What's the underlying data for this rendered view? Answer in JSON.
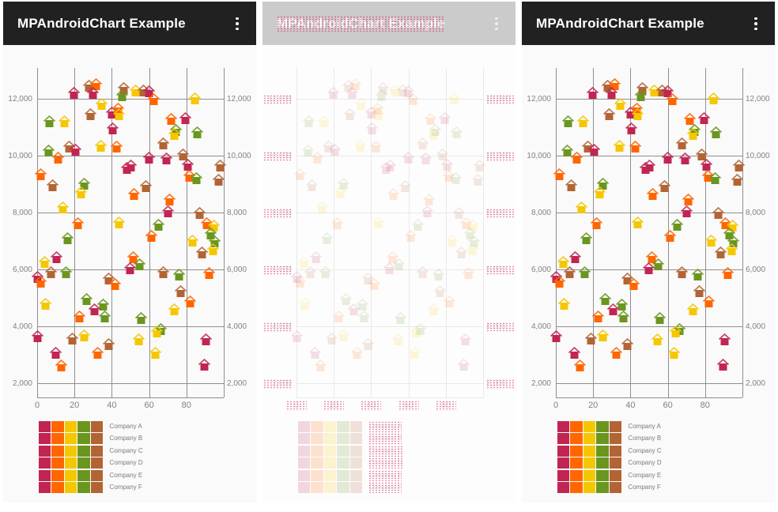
{
  "header": {
    "title": "MPAndroidChart Example",
    "menu_icon": "kebab-menu-icon"
  },
  "panels": [
    {
      "name": "expected-screenshot",
      "variant": "normal"
    },
    {
      "name": "diff-screenshot",
      "variant": "faded"
    },
    {
      "name": "actual-screenshot",
      "variant": "normal"
    }
  ],
  "colors": {
    "app_bar": "#212121",
    "app_bar_faded": "#cbcbcb",
    "title_text": "#ffffff",
    "panel_bg": "#fafafa",
    "grid": "#8f8f8f",
    "axis_text": "#828282",
    "legend_text": "#7a7a7a",
    "diff_dot": "#d30040",
    "series": [
      "#c12552",
      "#ff6600",
      "#f5c700",
      "#6a961f",
      "#b36435"
    ]
  },
  "chart_data": {
    "type": "scatter",
    "marker": "house-icon",
    "title": "",
    "xlabel": "",
    "ylabel": "",
    "xlim": [
      0,
      100
    ],
    "ylim": [
      1500,
      13000
    ],
    "grid": true,
    "x_ticks": [
      {
        "v": 0,
        "label": "0"
      },
      {
        "v": 20,
        "label": "20"
      },
      {
        "v": 40,
        "label": "40"
      },
      {
        "v": 60,
        "label": "60"
      },
      {
        "v": 80,
        "label": "80"
      }
    ],
    "y_ticks": [
      {
        "v": 12000,
        "label": "12,000"
      },
      {
        "v": 10000,
        "label": "10,000"
      },
      {
        "v": 8000,
        "label": "8,000"
      },
      {
        "v": 6000,
        "label": "6,000"
      },
      {
        "v": 4000,
        "label": "4,000"
      },
      {
        "v": 2000,
        "label": "2,000"
      }
    ],
    "legend": {
      "position": "bottom-left",
      "labels": [
        "Company A",
        "Company B",
        "Company C",
        "Company D",
        "Company E",
        "Company F"
      ],
      "swatches_per_row": 5
    },
    "series_colors": [
      "crimson",
      "orange",
      "yellow",
      "green",
      "brown"
    ],
    "points": [
      [
        19.7,
        12150,
        0
      ],
      [
        27.7,
        12400,
        4
      ],
      [
        31.5,
        12450,
        1
      ],
      [
        29.8,
        12150,
        0
      ],
      [
        46.6,
        12300,
        4
      ],
      [
        45.4,
        12050,
        3
      ],
      [
        34.5,
        11750,
        2
      ],
      [
        28.6,
        11400,
        4
      ],
      [
        39.9,
        11450,
        0
      ],
      [
        43.3,
        11575,
        1
      ],
      [
        43.7,
        11400,
        2
      ],
      [
        6.7,
        11150,
        3
      ],
      [
        14.7,
        11150,
        2
      ],
      [
        40.3,
        10900,
        0
      ],
      [
        17.2,
        10250,
        4
      ],
      [
        20.6,
        10150,
        0
      ],
      [
        34,
        10275,
        2
      ],
      [
        42.4,
        10250,
        1
      ],
      [
        6.3,
        10100,
        3
      ],
      [
        11.3,
        9850,
        1
      ],
      [
        48.3,
        9500,
        0
      ],
      [
        2.1,
        9275,
        1
      ],
      [
        8.4,
        8900,
        4
      ],
      [
        25.2,
        8950,
        3
      ],
      [
        23.5,
        8650,
        2
      ],
      [
        13.9,
        8100,
        2
      ],
      [
        21.8,
        7550,
        1
      ],
      [
        43.7,
        7575,
        2
      ],
      [
        52.9,
        12225,
        2
      ],
      [
        57.1,
        12225,
        4
      ],
      [
        60.1,
        12200,
        0
      ],
      [
        62.6,
        11925,
        1
      ],
      [
        84.5,
        11950,
        2
      ],
      [
        71.8,
        11225,
        1
      ],
      [
        79.4,
        11250,
        0
      ],
      [
        74.4,
        10825,
        3
      ],
      [
        73.5,
        10700,
        2
      ],
      [
        85.7,
        10750,
        3
      ],
      [
        67.6,
        10350,
        4
      ],
      [
        78.2,
        9975,
        4
      ],
      [
        60.1,
        9850,
        0
      ],
      [
        69.3,
        9825,
        0
      ],
      [
        80.7,
        9600,
        0
      ],
      [
        50.4,
        9575,
        0
      ],
      [
        81.5,
        9225,
        1
      ],
      [
        85.3,
        9150,
        3
      ],
      [
        97.9,
        9575,
        4
      ],
      [
        97.1,
        9075,
        4
      ],
      [
        58.4,
        8850,
        4
      ],
      [
        52.1,
        8575,
        1
      ],
      [
        71,
        8400,
        1
      ],
      [
        70.2,
        7975,
        0
      ],
      [
        87,
        7925,
        4
      ],
      [
        90.8,
        7550,
        1
      ],
      [
        65.1,
        7500,
        3
      ],
      [
        94.5,
        7475,
        2
      ],
      [
        16.4,
        7025,
        3
      ],
      [
        4.2,
        6200,
        2
      ],
      [
        10.5,
        6350,
        0
      ],
      [
        7.6,
        5825,
        4
      ],
      [
        15.5,
        5825,
        3
      ],
      [
        0,
        5675,
        0
      ],
      [
        2.1,
        5500,
        1
      ],
      [
        38.2,
        5600,
        4
      ],
      [
        41.6,
        5425,
        1
      ],
      [
        4.6,
        4725,
        2
      ],
      [
        26.5,
        4900,
        3
      ],
      [
        35.3,
        4700,
        3
      ],
      [
        30.7,
        4525,
        0
      ],
      [
        22.7,
        4275,
        1
      ],
      [
        36.1,
        4275,
        3
      ],
      [
        0.4,
        3575,
        0
      ],
      [
        18.9,
        3500,
        4
      ],
      [
        25.2,
        3600,
        2
      ],
      [
        38.2,
        3300,
        4
      ],
      [
        10.1,
        3000,
        0
      ],
      [
        32.4,
        3000,
        1
      ],
      [
        13,
        2550,
        1
      ],
      [
        61.3,
        7100,
        1
      ],
      [
        83.2,
        6950,
        2
      ],
      [
        92.9,
        7200,
        3
      ],
      [
        95,
        6925,
        3
      ],
      [
        94.1,
        6650,
        2
      ],
      [
        88.2,
        6525,
        4
      ],
      [
        51.3,
        6350,
        1
      ],
      [
        55,
        6100,
        3
      ],
      [
        49.6,
        5975,
        0
      ],
      [
        67.6,
        5825,
        4
      ],
      [
        76.1,
        5750,
        3
      ],
      [
        92,
        5800,
        1
      ],
      [
        76.9,
        5175,
        4
      ],
      [
        81.9,
        4800,
        1
      ],
      [
        73.5,
        4525,
        2
      ],
      [
        55.9,
        4225,
        3
      ],
      [
        66.4,
        3825,
        3
      ],
      [
        64.3,
        3750,
        2
      ],
      [
        54.6,
        3475,
        2
      ],
      [
        90.3,
        3475,
        0
      ],
      [
        63.4,
        3000,
        2
      ],
      [
        89.5,
        2575,
        0
      ]
    ]
  }
}
